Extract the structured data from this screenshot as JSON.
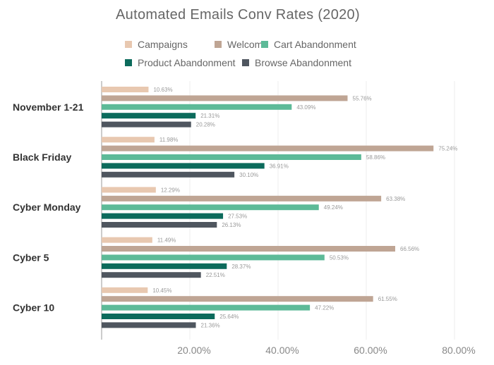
{
  "chart_data": {
    "type": "bar",
    "orientation": "horizontal",
    "title": "Automated Emails Conv Rates (2020)",
    "xlabel": "",
    "ylabel": "",
    "xlim": [
      0,
      80
    ],
    "x_ticks": [
      "20.00%",
      "40.00%",
      "60.00%",
      "80.00%"
    ],
    "x_tick_values": [
      20,
      40,
      60,
      80
    ],
    "grid": true,
    "legend_position": "top",
    "categories": [
      "November 1-21",
      "Black Friday",
      "Cyber Monday",
      "Cyber 5",
      "Cyber 10"
    ],
    "series": [
      {
        "name": "Campaigns",
        "color": "#e8c8b0",
        "values": [
          10.63,
          11.98,
          12.29,
          11.49,
          10.45
        ],
        "labels": [
          "10.63%",
          "11.98%",
          "12.29%",
          "11.49%",
          "10.45%"
        ]
      },
      {
        "name": "Welcome",
        "color": "#bfa594",
        "values": [
          55.76,
          75.24,
          63.38,
          66.56,
          61.55
        ],
        "labels": [
          "55.76%",
          "75.24%",
          "63.38%",
          "66.56%",
          "61.55%"
        ]
      },
      {
        "name": "Cart Abandonment",
        "color": "#5dba98",
        "values": [
          43.09,
          58.86,
          49.24,
          50.53,
          47.22
        ],
        "labels": [
          "43.09%",
          "58.86%",
          "49.24%",
          "50.53%",
          "47.22%"
        ]
      },
      {
        "name": "Product Abandonment",
        "color": "#0c6b5c",
        "values": [
          21.31,
          36.91,
          27.53,
          28.37,
          25.64
        ],
        "labels": [
          "21.31%",
          "36.91%",
          "27.53%",
          "28.37%",
          "25.64%"
        ]
      },
      {
        "name": "Browse Abandonment",
        "color": "#4f565f",
        "values": [
          20.28,
          30.1,
          26.13,
          22.51,
          21.36
        ],
        "labels": [
          "20.28%",
          "30.10%",
          "26.13%",
          "22.51%",
          "21.36%"
        ]
      }
    ]
  }
}
